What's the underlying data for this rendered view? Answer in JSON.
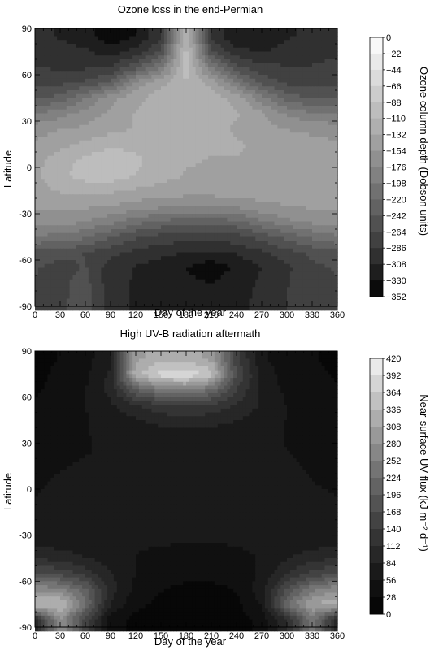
{
  "chart_data": [
    {
      "type": "heatmap",
      "title": "Ozone loss in the end-Permian",
      "xlabel": "Day of the year",
      "ylabel": "Latitude",
      "colorbar_label": "Ozone column depth (Dobson units)",
      "xlim": [
        0,
        360
      ],
      "ylim": [
        -90,
        90
      ],
      "x_ticks": [
        0,
        30,
        60,
        90,
        120,
        150,
        180,
        210,
        240,
        270,
        300,
        330,
        360
      ],
      "y_ticks": [
        90,
        60,
        30,
        0,
        -30,
        -60,
        -90
      ],
      "colorbar_levels": [
        0,
        -22,
        -44,
        -66,
        -88,
        -110,
        -132,
        -154,
        -176,
        -198,
        -220,
        -242,
        -264,
        -286,
        -308,
        -330,
        -352
      ],
      "colorbar_range": [
        -352,
        0
      ],
      "x": [
        0,
        30,
        60,
        90,
        120,
        150,
        180,
        210,
        240,
        270,
        300,
        330,
        360
      ],
      "y": [
        85,
        75,
        65,
        55,
        45,
        35,
        25,
        15,
        5,
        -5,
        -15,
        -25,
        -35,
        -45,
        -55,
        -65,
        -75,
        -85
      ],
      "z": [
        [
          -300,
          -310,
          -320,
          -345,
          -330,
          -290,
          -100,
          -290,
          -330,
          -325,
          -310,
          -305,
          -300
        ],
        [
          -295,
          -300,
          -305,
          -320,
          -300,
          -260,
          -100,
          -260,
          -300,
          -310,
          -300,
          -295,
          -290
        ],
        [
          -285,
          -290,
          -290,
          -285,
          -250,
          -200,
          -100,
          -200,
          -260,
          -280,
          -285,
          -285,
          -280
        ],
        [
          -270,
          -270,
          -260,
          -240,
          -170,
          -140,
          -110,
          -140,
          -200,
          -250,
          -270,
          -275,
          -270
        ],
        [
          -245,
          -235,
          -200,
          -160,
          -140,
          -120,
          -115,
          -120,
          -140,
          -190,
          -230,
          -245,
          -245
        ],
        [
          -200,
          -185,
          -165,
          -150,
          -130,
          -120,
          -118,
          -120,
          -130,
          -150,
          -180,
          -195,
          -200
        ],
        [
          -165,
          -155,
          -150,
          -140,
          -130,
          -125,
          -122,
          -125,
          -135,
          -145,
          -155,
          -160,
          -165
        ],
        [
          -150,
          -140,
          -125,
          -115,
          -118,
          -122,
          -125,
          -128,
          -130,
          -135,
          -140,
          -145,
          -150
        ],
        [
          -140,
          -120,
          -105,
          -95,
          -105,
          -120,
          -130,
          -133,
          -133,
          -133,
          -135,
          -138,
          -140
        ],
        [
          -138,
          -115,
          -100,
          -98,
          -110,
          -125,
          -133,
          -135,
          -135,
          -135,
          -135,
          -138,
          -138
        ],
        [
          -140,
          -130,
          -125,
          -128,
          -135,
          -140,
          -142,
          -142,
          -140,
          -140,
          -140,
          -140,
          -140
        ],
        [
          -150,
          -148,
          -150,
          -155,
          -162,
          -170,
          -175,
          -175,
          -170,
          -160,
          -155,
          -150,
          -150
        ],
        [
          -165,
          -165,
          -175,
          -190,
          -210,
          -225,
          -230,
          -230,
          -225,
          -200,
          -180,
          -170,
          -165
        ],
        [
          -200,
          -205,
          -215,
          -240,
          -260,
          -272,
          -278,
          -280,
          -272,
          -255,
          -235,
          -215,
          -200
        ],
        [
          -250,
          -255,
          -265,
          -280,
          -292,
          -302,
          -308,
          -312,
          -305,
          -290,
          -272,
          -258,
          -250
        ],
        [
          -262,
          -272,
          -262,
          -298,
          -310,
          -318,
          -330,
          -345,
          -325,
          -308,
          -290,
          -270,
          -262
        ],
        [
          -265,
          -270,
          -255,
          -300,
          -310,
          -318,
          -325,
          -330,
          -318,
          -305,
          -288,
          -270,
          -265
        ],
        [
          -265,
          -268,
          -255,
          -300,
          -310,
          -315,
          -320,
          -322,
          -315,
          -302,
          -285,
          -268,
          -265
        ]
      ]
    },
    {
      "type": "heatmap",
      "title": "High UV-B radiation aftermath",
      "xlabel": "Day of the year",
      "ylabel": "Latitude",
      "colorbar_label": "Near-surface UV flux (kJ m⁻² d⁻¹)",
      "xlim": [
        0,
        360
      ],
      "ylim": [
        -90,
        90
      ],
      "x_ticks": [
        0,
        30,
        60,
        90,
        120,
        150,
        180,
        210,
        240,
        270,
        300,
        330,
        360
      ],
      "y_ticks": [
        90,
        60,
        30,
        0,
        -30,
        -60,
        -90
      ],
      "colorbar_levels": [
        420,
        392,
        364,
        336,
        308,
        280,
        252,
        224,
        196,
        168,
        140,
        112,
        84,
        56,
        28,
        0
      ],
      "colorbar_range": [
        0,
        420
      ],
      "x": [
        0,
        30,
        60,
        90,
        120,
        150,
        180,
        210,
        240,
        270,
        300,
        330,
        360
      ],
      "y": [
        85,
        75,
        65,
        55,
        45,
        35,
        25,
        15,
        5,
        -5,
        -15,
        -25,
        -35,
        -45,
        -55,
        -65,
        -75,
        -85
      ],
      "z": [
        [
          15,
          30,
          45,
          80,
          300,
          320,
          320,
          300,
          150,
          60,
          40,
          30,
          20
        ],
        [
          20,
          35,
          50,
          90,
          330,
          380,
          390,
          350,
          170,
          70,
          45,
          35,
          25
        ],
        [
          25,
          35,
          55,
          95,
          200,
          250,
          260,
          230,
          140,
          75,
          50,
          40,
          30
        ],
        [
          30,
          40,
          55,
          80,
          110,
          135,
          145,
          135,
          110,
          80,
          55,
          45,
          35
        ],
        [
          40,
          45,
          55,
          65,
          80,
          95,
          100,
          95,
          85,
          70,
          55,
          48,
          40
        ],
        [
          45,
          50,
          55,
          60,
          65,
          70,
          72,
          70,
          68,
          62,
          55,
          50,
          45
        ],
        [
          50,
          52,
          55,
          58,
          60,
          62,
          64,
          63,
          62,
          60,
          56,
          52,
          50
        ],
        [
          52,
          55,
          58,
          60,
          62,
          64,
          66,
          66,
          65,
          62,
          58,
          54,
          52
        ],
        [
          54,
          58,
          60,
          62,
          64,
          66,
          68,
          68,
          67,
          64,
          60,
          56,
          54
        ],
        [
          56,
          59,
          61,
          63,
          65,
          67,
          69,
          69,
          68,
          66,
          62,
          58,
          56
        ],
        [
          58,
          60,
          62,
          64,
          65,
          66,
          67,
          67,
          66,
          65,
          63,
          60,
          58
        ],
        [
          62,
          62,
          63,
          64,
          64,
          64,
          64,
          64,
          64,
          64,
          64,
          63,
          62
        ],
        [
          75,
          72,
          68,
          64,
          60,
          58,
          56,
          56,
          58,
          62,
          68,
          72,
          75
        ],
        [
          110,
          100,
          85,
          70,
          55,
          48,
          45,
          45,
          48,
          58,
          80,
          100,
          110
        ],
        [
          170,
          160,
          130,
          85,
          55,
          40,
          35,
          35,
          40,
          60,
          110,
          150,
          170
        ],
        [
          270,
          260,
          200,
          100,
          50,
          30,
          22,
          22,
          30,
          70,
          170,
          240,
          270
        ],
        [
          340,
          340,
          230,
          80,
          35,
          20,
          15,
          15,
          20,
          60,
          220,
          310,
          330
        ],
        [
          100,
          280,
          160,
          40,
          20,
          12,
          10,
          10,
          12,
          40,
          110,
          240,
          100
        ]
      ]
    }
  ]
}
